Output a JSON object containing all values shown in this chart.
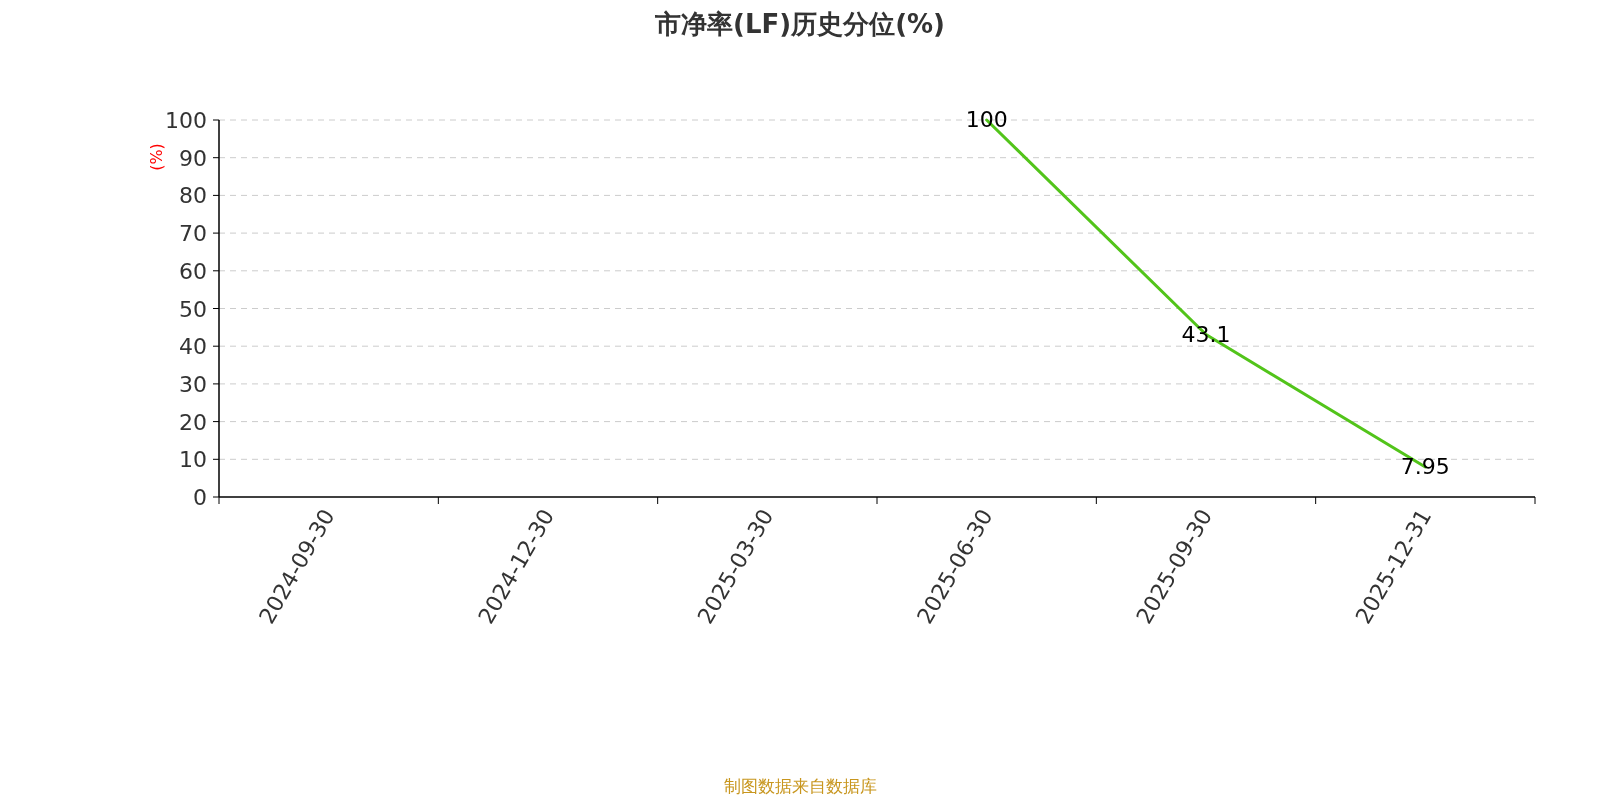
{
  "chart_data": {
    "type": "line",
    "title": "市净率(LF)历史分位(%)",
    "ylabel": "(%)",
    "categories": [
      "2024-09-30",
      "2024-12-30",
      "2025-03-30",
      "2025-06-30",
      "2025-09-30",
      "2025-12-31"
    ],
    "series": [
      {
        "color": "#52c41a",
        "values": [
          null,
          null,
          null,
          100,
          43.1,
          7.95
        ]
      }
    ],
    "ylim": [
      0,
      100
    ],
    "yticks": [
      0,
      10,
      20,
      30,
      40,
      50,
      60,
      70,
      80,
      90,
      100
    ],
    "grid": "y",
    "data_labels": true,
    "marker": "none",
    "annotations": [
      "制图数据来自数据库"
    ]
  }
}
